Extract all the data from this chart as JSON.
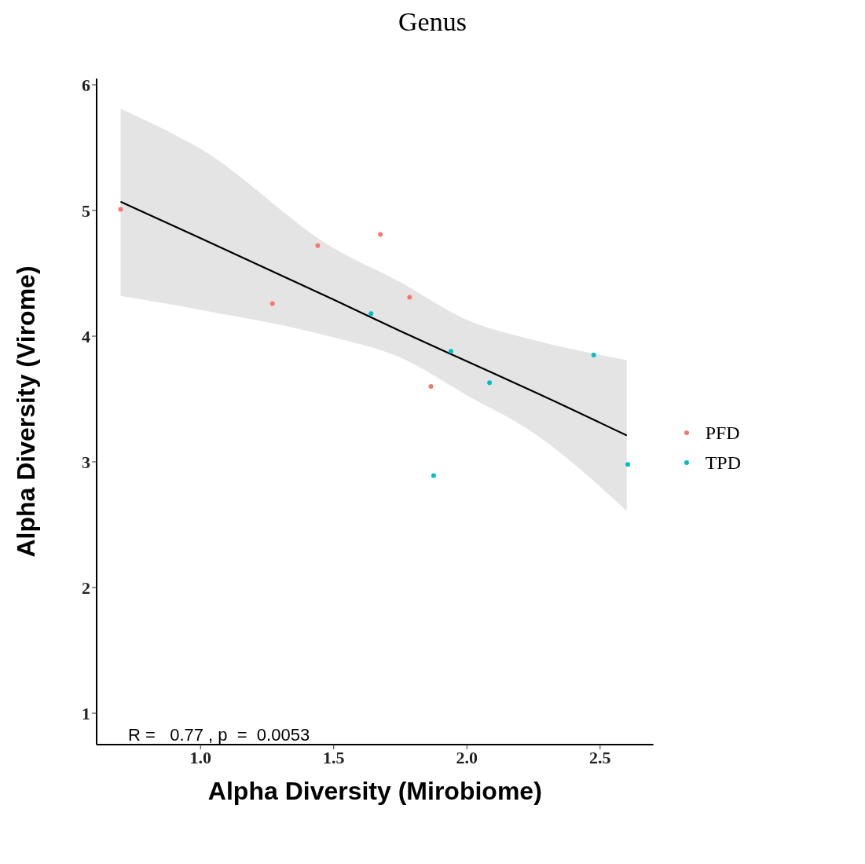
{
  "chart_data": {
    "type": "scatter",
    "title": "Genus",
    "xlabel": "Alpha Diversity (Mirobiome)",
    "ylabel": "Alpha Diversity (Virome)",
    "xlim": [
      0.61,
      2.7
    ],
    "xticks": [
      {
        "value": 1.0,
        "label": "1.0"
      },
      {
        "value": 1.5,
        "label": "1.5"
      },
      {
        "value": 2.0,
        "label": "2.0"
      },
      {
        "value": 2.5,
        "label": "2.5"
      }
    ],
    "ylim": [
      0.75,
      6.05
    ],
    "yticks": [
      1,
      2,
      3,
      4,
      5,
      6
    ],
    "series": [
      {
        "name": "PFD",
        "color": "#f8766d",
        "x": [
          0.7,
          1.27,
          1.44,
          1.675,
          1.785,
          1.865
        ],
        "values": [
          5.01,
          4.26,
          4.72,
          4.81,
          4.31,
          3.6
        ]
      },
      {
        "name": "TPD",
        "color": "#00bfc4",
        "x": [
          1.64,
          1.94,
          2.085,
          1.875,
          2.476,
          2.604
        ],
        "values": [
          4.18,
          3.88,
          3.63,
          2.89,
          3.85,
          2.98
        ]
      },
      {
        "type": "line",
        "marker": "none",
        "color": "#000000",
        "x": [
          0.7,
          1.0,
          1.5,
          1.75,
          2.0,
          2.25,
          2.6
        ],
        "values": [
          5.07,
          4.78,
          4.29,
          4.04,
          3.8,
          3.56,
          3.21
        ],
        "lower": [
          4.32,
          4.21,
          3.99,
          3.83,
          3.53,
          3.23,
          2.61
        ],
        "upper": [
          5.81,
          5.49,
          4.7,
          4.43,
          4.13,
          3.97,
          3.81
        ]
      }
    ],
    "annotations": [
      "R =   0.77 , p  =  0.0053"
    ],
    "legend": "right",
    "grid": false,
    "marker": "circle"
  }
}
